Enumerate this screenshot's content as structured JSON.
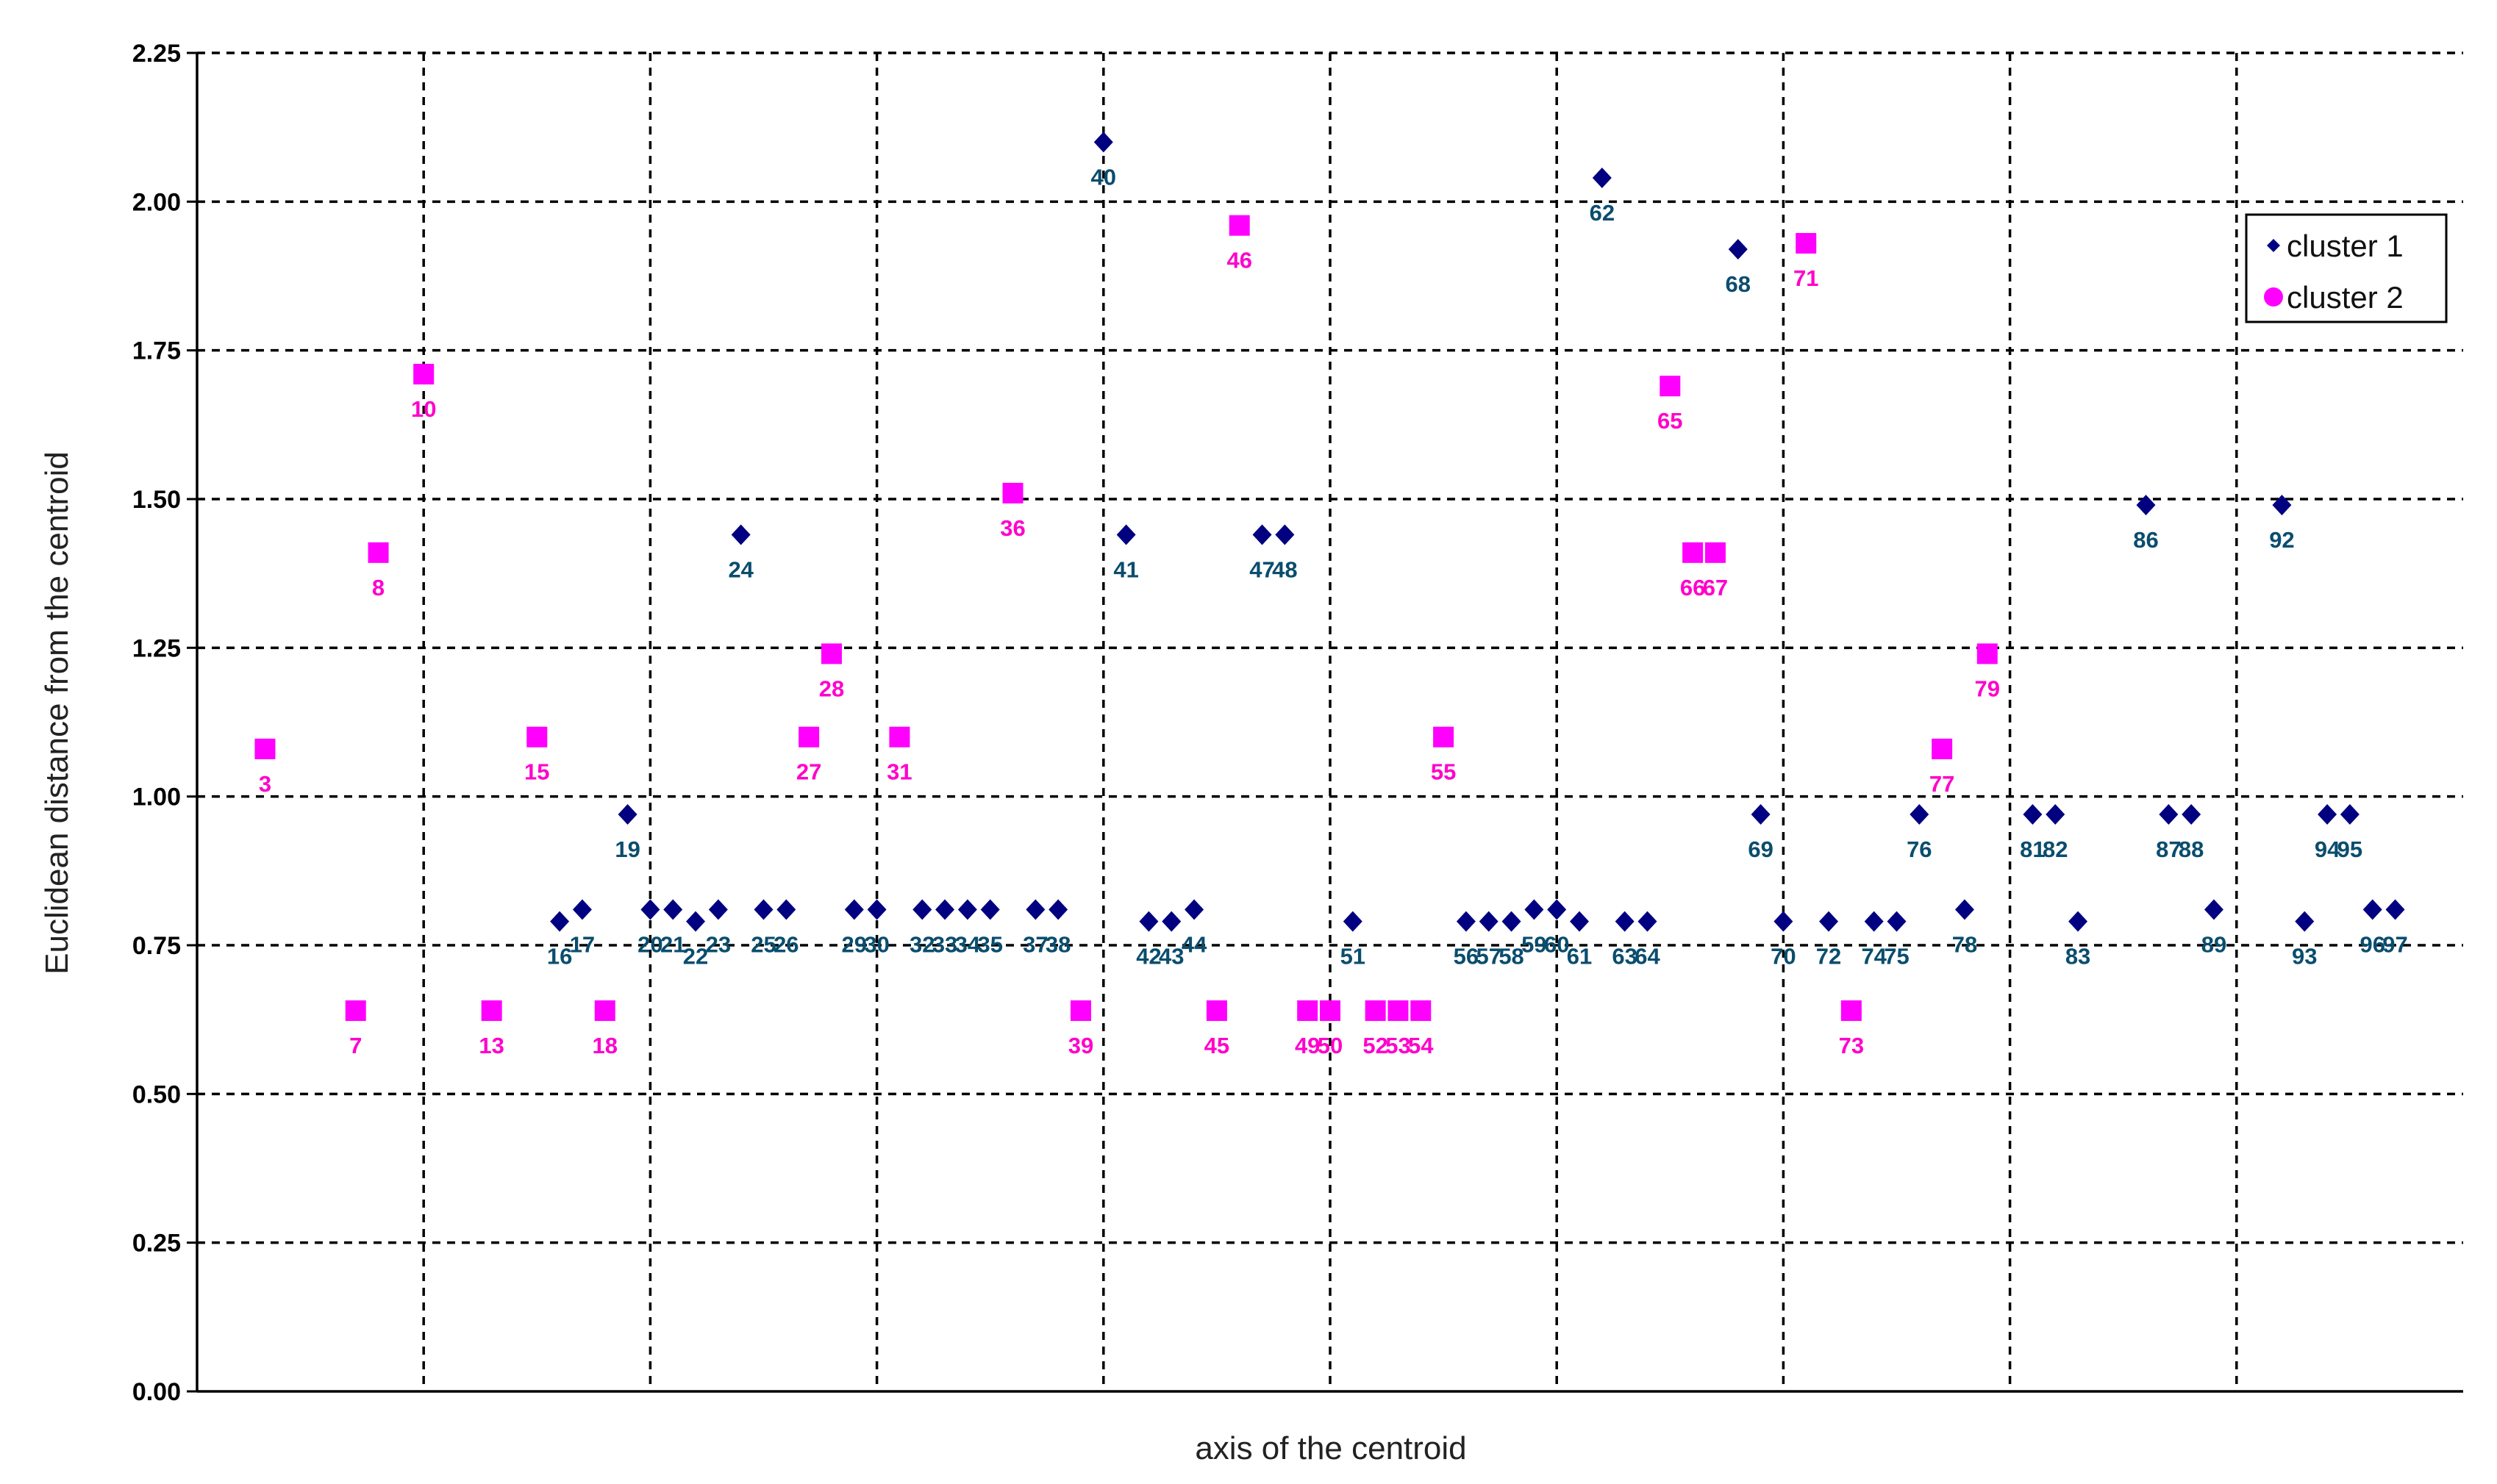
{
  "chart_data": {
    "type": "scatter",
    "title": "",
    "xlabel": "axis of the centroid",
    "ylabel": "Euclidean distance from the centroid",
    "xlim": [
      0,
      100
    ],
    "ylim": [
      0,
      2.25
    ],
    "yticks": [
      "0.00",
      "0.25",
      "0.50",
      "0.75",
      "1.00",
      "1.25",
      "1.50",
      "1.75",
      "2.00",
      "2.25"
    ],
    "grid": true,
    "legend_position": "top-right",
    "series": [
      {
        "name": "cluster 1",
        "color": "#000080",
        "marker": "diamond",
        "label_color": "#0a4d6e",
        "points": [
          {
            "x": 16,
            "y": 0.79,
            "label": "16"
          },
          {
            "x": 17,
            "y": 0.81,
            "label": "17"
          },
          {
            "x": 19,
            "y": 0.97,
            "label": "19"
          },
          {
            "x": 20,
            "y": 0.81,
            "label": "20"
          },
          {
            "x": 21,
            "y": 0.81,
            "label": "21"
          },
          {
            "x": 22,
            "y": 0.79,
            "label": "22"
          },
          {
            "x": 23,
            "y": 0.81,
            "label": "23"
          },
          {
            "x": 24,
            "y": 1.44,
            "label": "24"
          },
          {
            "x": 25,
            "y": 0.81,
            "label": "25"
          },
          {
            "x": 26,
            "y": 0.81,
            "label": "26"
          },
          {
            "x": 29,
            "y": 0.81,
            "label": "29"
          },
          {
            "x": 30,
            "y": 0.81,
            "label": "30"
          },
          {
            "x": 32,
            "y": 0.81,
            "label": "32"
          },
          {
            "x": 33,
            "y": 0.81,
            "label": "33"
          },
          {
            "x": 34,
            "y": 0.81,
            "label": "34"
          },
          {
            "x": 35,
            "y": 0.81,
            "label": "35"
          },
          {
            "x": 37,
            "y": 0.81,
            "label": "37"
          },
          {
            "x": 38,
            "y": 0.81,
            "label": "38"
          },
          {
            "x": 40,
            "y": 2.1,
            "label": "40"
          },
          {
            "x": 41,
            "y": 1.44,
            "label": "41"
          },
          {
            "x": 42,
            "y": 0.79,
            "label": "42"
          },
          {
            "x": 43,
            "y": 0.79,
            "label": "43"
          },
          {
            "x": 44,
            "y": 0.81,
            "label": "44"
          },
          {
            "x": 47,
            "y": 1.44,
            "label": "47"
          },
          {
            "x": 48,
            "y": 1.44,
            "label": "48"
          },
          {
            "x": 51,
            "y": 0.79,
            "label": "51"
          },
          {
            "x": 56,
            "y": 0.79,
            "label": "56"
          },
          {
            "x": 57,
            "y": 0.79,
            "label": "57"
          },
          {
            "x": 58,
            "y": 0.79,
            "label": "58"
          },
          {
            "x": 59,
            "y": 0.81,
            "label": "59"
          },
          {
            "x": 60,
            "y": 0.81,
            "label": "60"
          },
          {
            "x": 61,
            "y": 0.79,
            "label": "61"
          },
          {
            "x": 62,
            "y": 2.04,
            "label": "62"
          },
          {
            "x": 63,
            "y": 0.79,
            "label": "63"
          },
          {
            "x": 64,
            "y": 0.79,
            "label": "64"
          },
          {
            "x": 68,
            "y": 1.92,
            "label": "68"
          },
          {
            "x": 69,
            "y": 0.97,
            "label": "69"
          },
          {
            "x": 70,
            "y": 0.79,
            "label": "70"
          },
          {
            "x": 72,
            "y": 0.79,
            "label": "72"
          },
          {
            "x": 74,
            "y": 0.79,
            "label": "74"
          },
          {
            "x": 75,
            "y": 0.79,
            "label": "75"
          },
          {
            "x": 76,
            "y": 0.97,
            "label": "76"
          },
          {
            "x": 78,
            "y": 0.81,
            "label": "78"
          },
          {
            "x": 81,
            "y": 0.97,
            "label": "81"
          },
          {
            "x": 82,
            "y": 0.97,
            "label": "82"
          },
          {
            "x": 83,
            "y": 0.79,
            "label": "83"
          },
          {
            "x": 86,
            "y": 1.49,
            "label": "86"
          },
          {
            "x": 87,
            "y": 0.97,
            "label": "87"
          },
          {
            "x": 88,
            "y": 0.97,
            "label": "88"
          },
          {
            "x": 89,
            "y": 0.81,
            "label": "89"
          },
          {
            "x": 92,
            "y": 1.49,
            "label": "92"
          },
          {
            "x": 93,
            "y": 0.79,
            "label": "93"
          },
          {
            "x": 94,
            "y": 0.97,
            "label": "94"
          },
          {
            "x": 95,
            "y": 0.97,
            "label": "95"
          },
          {
            "x": 96,
            "y": 0.81,
            "label": "96"
          },
          {
            "x": 97,
            "y": 0.81,
            "label": "97"
          }
        ]
      },
      {
        "name": "cluster 2",
        "color": "#ff00ff",
        "marker": "square",
        "label_color": "#ff00cc",
        "points": [
          {
            "x": 3,
            "y": 1.08,
            "label": "3"
          },
          {
            "x": 7,
            "y": 0.64,
            "label": "7"
          },
          {
            "x": 8,
            "y": 1.41,
            "label": "8"
          },
          {
            "x": 10,
            "y": 1.71,
            "label": "10"
          },
          {
            "x": 13,
            "y": 0.64,
            "label": "13"
          },
          {
            "x": 15,
            "y": 1.1,
            "label": "15"
          },
          {
            "x": 18,
            "y": 0.64,
            "label": "18"
          },
          {
            "x": 27,
            "y": 1.1,
            "label": "27"
          },
          {
            "x": 28,
            "y": 1.24,
            "label": "28"
          },
          {
            "x": 31,
            "y": 1.1,
            "label": "31"
          },
          {
            "x": 36,
            "y": 1.51,
            "label": "36"
          },
          {
            "x": 39,
            "y": 0.64,
            "label": "39"
          },
          {
            "x": 45,
            "y": 0.64,
            "label": "45"
          },
          {
            "x": 46,
            "y": 1.96,
            "label": "46"
          },
          {
            "x": 49,
            "y": 0.64,
            "label": "49"
          },
          {
            "x": 50,
            "y": 0.64,
            "label": "50"
          },
          {
            "x": 52,
            "y": 0.64,
            "label": "52"
          },
          {
            "x": 53,
            "y": 0.64,
            "label": "53"
          },
          {
            "x": 54,
            "y": 0.64,
            "label": "54"
          },
          {
            "x": 55,
            "y": 1.1,
            "label": "55"
          },
          {
            "x": 65,
            "y": 1.69,
            "label": "65"
          },
          {
            "x": 66,
            "y": 1.41,
            "label": "66"
          },
          {
            "x": 67,
            "y": 1.41,
            "label": "67"
          },
          {
            "x": 71,
            "y": 1.93,
            "label": "71"
          },
          {
            "x": 73,
            "y": 0.64,
            "label": "73"
          },
          {
            "x": 77,
            "y": 1.08,
            "label": "77"
          },
          {
            "x": 79,
            "y": 1.24,
            "label": "79"
          }
        ]
      }
    ]
  }
}
